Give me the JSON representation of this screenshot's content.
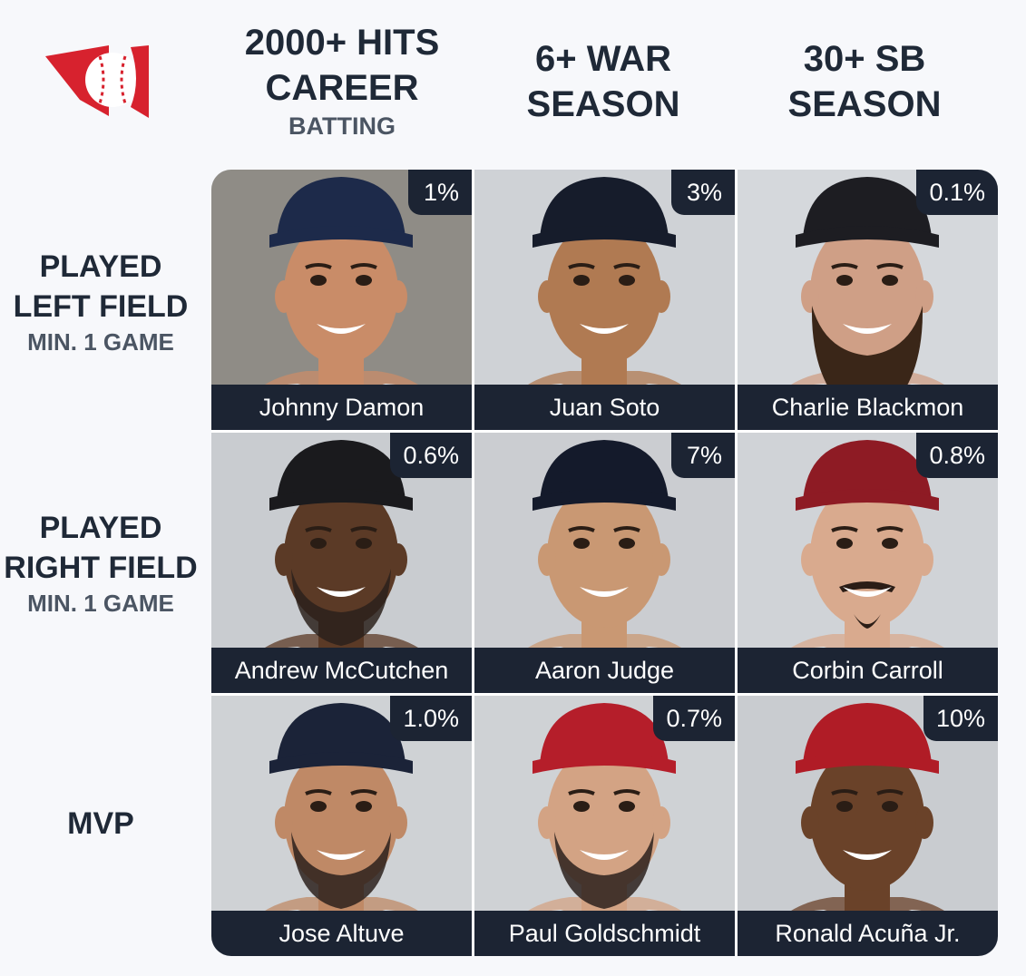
{
  "logo": {
    "icon": "baseball-flag-logo-icon",
    "colors": {
      "red": "#d7222e",
      "white": "#ffffff"
    }
  },
  "columns": [
    {
      "title_line1": "2000+ HITS",
      "title_line2": "CAREER",
      "subtitle": "BATTING"
    },
    {
      "title_line1": "6+ WAR",
      "title_line2": "SEASON",
      "subtitle": ""
    },
    {
      "title_line1": "30+ SB",
      "title_line2": "SEASON",
      "subtitle": ""
    }
  ],
  "rows": [
    {
      "title_line1": "PLAYED",
      "title_line2": "LEFT FIELD",
      "subtitle": "MIN. 1 GAME"
    },
    {
      "title_line1": "PLAYED",
      "title_line2": "RIGHT FIELD",
      "subtitle": "MIN. 1 GAME"
    },
    {
      "title_line1": "MVP",
      "title_line2": "",
      "subtitle": ""
    }
  ],
  "cells": [
    [
      {
        "name": "Johnny Damon",
        "percent": "1%",
        "bg": "#8f8c86",
        "skin": "#c98c68",
        "cap": "#1d2a4a",
        "beard": "none"
      },
      {
        "name": "Juan Soto",
        "percent": "3%",
        "bg": "#cfd2d6",
        "skin": "#b07a52",
        "cap": "#161c2b",
        "beard": "none"
      },
      {
        "name": "Charlie Blackmon",
        "percent": "0.1%",
        "bg": "#d5d8dc",
        "skin": "#cf9f86",
        "cap": "#1d1d22",
        "beard": "long"
      }
    ],
    [
      {
        "name": "Andrew McCutchen",
        "percent": "0.6%",
        "bg": "#c9ccd0",
        "skin": "#5b3a26",
        "cap": "#1a1a1d",
        "beard": "full"
      },
      {
        "name": "Aaron Judge",
        "percent": "7%",
        "bg": "#cbcdd1",
        "skin": "#c99873",
        "cap": "#141a2b",
        "beard": "none"
      },
      {
        "name": "Corbin Carroll",
        "percent": "0.8%",
        "bg": "#d0d3d7",
        "skin": "#d9aa8e",
        "cap": "#8e1b24",
        "beard": "goatee"
      }
    ],
    [
      {
        "name": "Jose Altuve",
        "percent": "1.0%",
        "bg": "#cfd2d5",
        "skin": "#bf8966",
        "cap": "#1b2338",
        "beard": "full"
      },
      {
        "name": "Paul Goldschmidt",
        "percent": "0.7%",
        "bg": "#cfd2d5",
        "skin": "#d3a384",
        "cap": "#b51e2a",
        "beard": "full"
      },
      {
        "name": "Ronald Acuña Jr.",
        "percent": "10%",
        "bg": "#c9ccd0",
        "skin": "#6a4229",
        "cap": "#b01c26",
        "beard": "none"
      }
    ]
  ]
}
